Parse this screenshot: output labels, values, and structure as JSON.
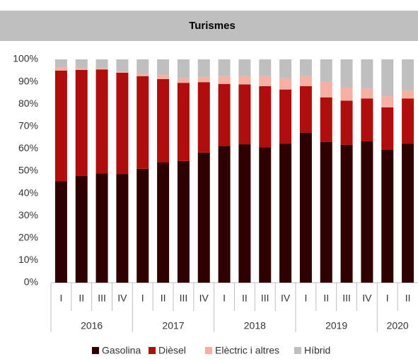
{
  "chart_data": {
    "type": "stacked_bar",
    "title": "Turismes",
    "category_groups": [
      {
        "name": "2016",
        "categories": [
          "I",
          "II",
          "III",
          "IV"
        ]
      },
      {
        "name": "2017",
        "categories": [
          "I",
          "II",
          "III",
          "IV"
        ]
      },
      {
        "name": "2018",
        "categories": [
          "I",
          "II",
          "III",
          "IV"
        ]
      },
      {
        "name": "2019",
        "categories": [
          "I",
          "II",
          "III",
          "IV"
        ]
      },
      {
        "name": "2020",
        "categories": [
          "I",
          "II"
        ]
      }
    ],
    "series": [
      {
        "name": "Gasolina",
        "color": "#2e0000",
        "values": [
          45.5,
          47.8,
          49,
          48.7,
          51,
          53.8,
          54.5,
          58.3,
          61.2,
          62,
          60.7,
          62.3,
          67.2,
          63,
          61.8,
          63.3,
          59.5,
          62.3
        ]
      },
      {
        "name": "Dièsel",
        "color": "#b00d0d",
        "values": [
          49.5,
          47.5,
          46.5,
          45.3,
          41.5,
          37.4,
          35,
          31.5,
          27.8,
          26.8,
          27.3,
          24.2,
          20.8,
          20,
          19.7,
          19.2,
          19,
          20.2
        ]
      },
      {
        "name": "Elèctric i altres",
        "color": "#f5afa3",
        "values": [
          1.5,
          0.7,
          0.5,
          0.5,
          1,
          1.8,
          2,
          2.2,
          3.5,
          3.7,
          4.5,
          5,
          4.5,
          7,
          6,
          4.5,
          5,
          3.5
        ]
      },
      {
        "name": "Híbrid",
        "color": "#bfbfbf",
        "values": [
          3.5,
          4,
          4,
          5.5,
          6.5,
          7,
          8.5,
          8,
          7.5,
          7.5,
          7.5,
          8.5,
          7.5,
          10,
          12.5,
          13,
          16.5,
          14
        ]
      }
    ],
    "ylim": [
      0,
      100
    ],
    "yticks": [
      {
        "value": 0,
        "label": "0%"
      },
      {
        "value": 10,
        "label": "10%"
      },
      {
        "value": 20,
        "label": "20%"
      },
      {
        "value": 30,
        "label": "30%"
      },
      {
        "value": 40,
        "label": "40%"
      },
      {
        "value": 50,
        "label": "50%"
      },
      {
        "value": 60,
        "label": "60%"
      },
      {
        "value": 70,
        "label": "70%"
      },
      {
        "value": 80,
        "label": "80%"
      },
      {
        "value": 90,
        "label": "90%"
      },
      {
        "value": 100,
        "label": "100%"
      }
    ],
    "grid": false
  }
}
